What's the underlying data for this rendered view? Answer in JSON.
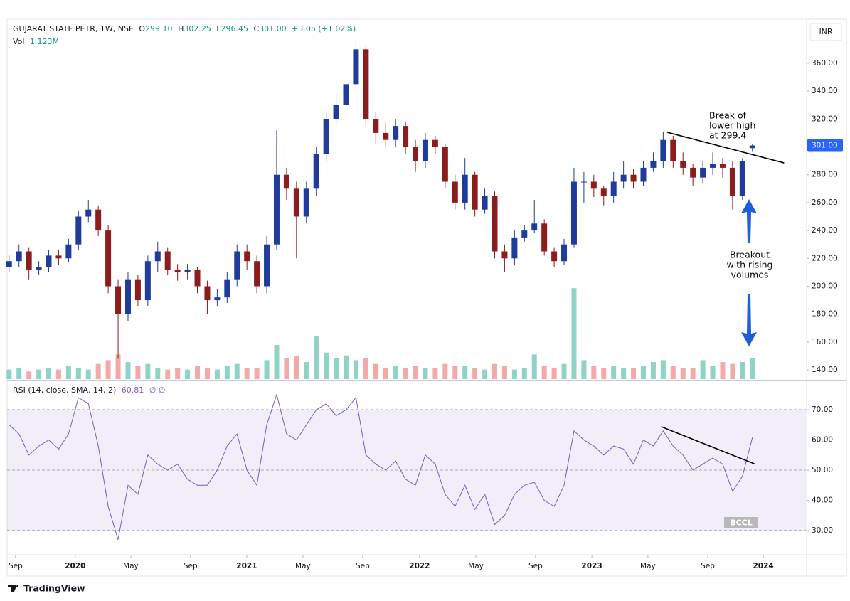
{
  "header": {
    "symbol": "GUJARAT STATE PETR, 1W, NSE",
    "open_key": "O",
    "open": "299.10",
    "high_key": "H",
    "high": "302.25",
    "low_key": "L",
    "low": "296.45",
    "close_key": "C",
    "close": "301.00",
    "change": "+3.05 (+1.02%)",
    "volume_key": "Vol",
    "volume": "1.123M",
    "currency": "INR",
    "price_label": "301.00"
  },
  "chart_data": [
    {
      "type": "candlestick",
      "xlim": [
        -0.2,
        80.4
      ],
      "ylim": [
        133.4,
        391.6
      ],
      "yticks": [
        {
          "value": 140,
          "label": "140.00"
        },
        {
          "value": 160,
          "label": "160.00"
        },
        {
          "value": 180,
          "label": "180.00"
        },
        {
          "value": 200,
          "label": "200.00"
        },
        {
          "value": 220,
          "label": "220.00"
        },
        {
          "value": 240,
          "label": "240.00"
        },
        {
          "value": 260,
          "label": "260.00"
        },
        {
          "value": 280,
          "label": "280.00"
        },
        {
          "value": 300,
          "label": "300.00"
        },
        {
          "value": 320,
          "label": "320.00"
        },
        {
          "value": 340,
          "label": "340.00"
        },
        {
          "value": 360,
          "label": "360.00"
        }
      ],
      "xticks": [
        {
          "value": 0.65,
          "label": "Sep"
        },
        {
          "value": 6.68,
          "label": "2020"
        },
        {
          "value": 12.28,
          "label": "May"
        },
        {
          "value": 18.3,
          "label": "Sep"
        },
        {
          "value": 23.98,
          "label": "2021"
        },
        {
          "value": 29.65,
          "label": "May"
        },
        {
          "value": 35.68,
          "label": "Sep"
        },
        {
          "value": 41.42,
          "label": "2022"
        },
        {
          "value": 47.1,
          "label": "May"
        },
        {
          "value": 53.12,
          "label": "Sep"
        },
        {
          "value": 58.8,
          "label": "2023"
        },
        {
          "value": 64.46,
          "label": "May"
        },
        {
          "value": 70.5,
          "label": "Sep"
        },
        {
          "value": 76.1,
          "label": "2024"
        }
      ],
      "up_color": "#1f3c9c",
      "down_color": "#8c1d1d",
      "open": [
        214,
        218,
        225,
        212,
        214,
        222,
        220,
        230,
        250,
        255,
        240,
        200,
        180,
        205,
        190,
        218,
        225,
        212,
        210,
        212,
        200,
        190,
        192,
        205,
        225,
        218,
        200,
        230,
        280,
        270,
        250,
        270,
        295,
        320,
        330,
        345,
        370,
        320,
        310,
        305,
        315,
        300,
        290,
        305,
        300,
        275,
        260,
        280,
        255,
        265,
        225,
        220,
        235,
        240,
        245,
        225,
        218,
        230,
        275,
        275,
        270,
        265,
        275,
        280,
        275,
        285,
        290,
        305,
        290,
        285,
        278,
        285,
        288,
        285,
        265,
        299.1
      ],
      "high": [
        222,
        230,
        228,
        218,
        226,
        226,
        234,
        254,
        262,
        258,
        244,
        205,
        210,
        208,
        222,
        232,
        228,
        216,
        216,
        214,
        204,
        198,
        210,
        230,
        230,
        222,
        236,
        312,
        285,
        275,
        275,
        300,
        325,
        338,
        350,
        376,
        372,
        325,
        318,
        320,
        318,
        305,
        310,
        308,
        302,
        280,
        292,
        282,
        270,
        268,
        230,
        240,
        244,
        262,
        248,
        228,
        234,
        285,
        282,
        280,
        272,
        282,
        290,
        284,
        290,
        296,
        311,
        308,
        296,
        288,
        290,
        296,
        292,
        290,
        292,
        302.25
      ],
      "low": [
        210,
        214,
        205,
        208,
        210,
        215,
        217,
        226,
        246,
        236,
        195,
        148,
        175,
        186,
        186,
        210,
        208,
        204,
        205,
        195,
        180,
        186,
        188,
        200,
        212,
        195,
        195,
        226,
        262,
        220,
        245,
        265,
        290,
        315,
        325,
        340,
        315,
        302,
        300,
        300,
        295,
        282,
        285,
        295,
        270,
        255,
        255,
        250,
        252,
        220,
        210,
        215,
        232,
        238,
        222,
        214,
        215,
        228,
        260,
        264,
        258,
        260,
        270,
        270,
        272,
        282,
        285,
        285,
        280,
        272,
        274,
        280,
        278,
        255,
        262,
        296.45
      ],
      "close": [
        218,
        225,
        212,
        214,
        222,
        220,
        230,
        250,
        255,
        240,
        200,
        180,
        205,
        190,
        218,
        225,
        212,
        210,
        212,
        200,
        190,
        192,
        205,
        225,
        218,
        200,
        230,
        280,
        270,
        250,
        270,
        295,
        320,
        330,
        345,
        370,
        320,
        310,
        305,
        315,
        300,
        290,
        305,
        300,
        275,
        260,
        280,
        255,
        265,
        225,
        220,
        235,
        240,
        245,
        225,
        218,
        230,
        275,
        275,
        270,
        265,
        275,
        280,
        275,
        285,
        290,
        305,
        290,
        285,
        278,
        285,
        288,
        285,
        265,
        290,
        301
      ],
      "volume": [
        0.5,
        0.6,
        0.4,
        0.5,
        0.6,
        0.5,
        0.7,
        0.6,
        0.5,
        0.8,
        1.0,
        1.3,
        0.9,
        0.7,
        0.8,
        0.6,
        0.5,
        0.6,
        0.5,
        0.7,
        0.6,
        0.5,
        0.7,
        0.8,
        0.6,
        0.6,
        1.0,
        1.8,
        1.1,
        1.2,
        0.9,
        2.25,
        1.4,
        1.1,
        1.25,
        1.0,
        1.1,
        0.8,
        0.6,
        0.7,
        0.6,
        0.7,
        0.6,
        0.6,
        0.8,
        0.7,
        0.7,
        0.6,
        0.5,
        0.8,
        0.7,
        0.5,
        0.6,
        1.3,
        0.7,
        0.6,
        0.8,
        4.8,
        1.0,
        0.7,
        0.6,
        0.7,
        0.6,
        0.6,
        0.7,
        0.9,
        1.0,
        0.7,
        0.6,
        0.6,
        1.0,
        0.7,
        0.9,
        0.8,
        0.9,
        1.123
      ],
      "volume_lim": [
        0,
        19
      ],
      "volume_up_color": "#8fd3c6",
      "volume_down_color": "#f4a9a9",
      "trendline": {
        "x": [
          66.4,
          78.2
        ],
        "y": [
          310.5,
          288.5
        ]
      },
      "annotations": [
        [
          "Break of",
          "lower high",
          "at 299.4"
        ],
        [
          "Breakout",
          "with rising",
          "volumes"
        ]
      ]
    },
    {
      "type": "line",
      "title": "RSI (14, close, SMA, 14, 2)",
      "value_label": "60.81",
      "extra": "∅ ∅",
      "color": "#7e57c2",
      "xlim": [
        -0.2,
        80.4
      ],
      "ylim": [
        22,
        79.2
      ],
      "yticks": [
        {
          "value": 30,
          "label": "30.00"
        },
        {
          "value": 40,
          "label": "40.00"
        },
        {
          "value": 50,
          "label": "50.00"
        },
        {
          "value": 60,
          "label": "60.00"
        },
        {
          "value": 70,
          "label": "70.00"
        }
      ],
      "values": [
        65,
        62,
        55,
        58,
        60,
        57,
        62,
        74,
        72,
        58,
        38,
        27,
        45,
        42,
        55,
        52,
        50,
        52,
        47,
        45,
        45,
        50,
        58,
        62,
        50,
        45,
        65,
        75,
        62,
        60,
        65,
        70,
        72,
        68,
        70,
        74,
        55,
        52,
        50,
        53,
        47,
        45,
        55,
        52,
        42,
        38,
        45,
        37,
        42,
        32,
        35,
        42,
        45,
        46,
        40,
        38,
        45,
        63,
        60,
        58,
        55,
        58,
        57,
        52,
        60,
        58,
        63,
        58,
        55,
        50,
        52,
        54,
        52,
        43,
        48,
        60.81
      ],
      "trendline": {
        "x": [
          65.8,
          75.2
        ],
        "y": [
          64.4,
          52.1
        ]
      },
      "watermark": "BCCL"
    }
  ],
  "footer": {
    "brand": "TradingView"
  }
}
